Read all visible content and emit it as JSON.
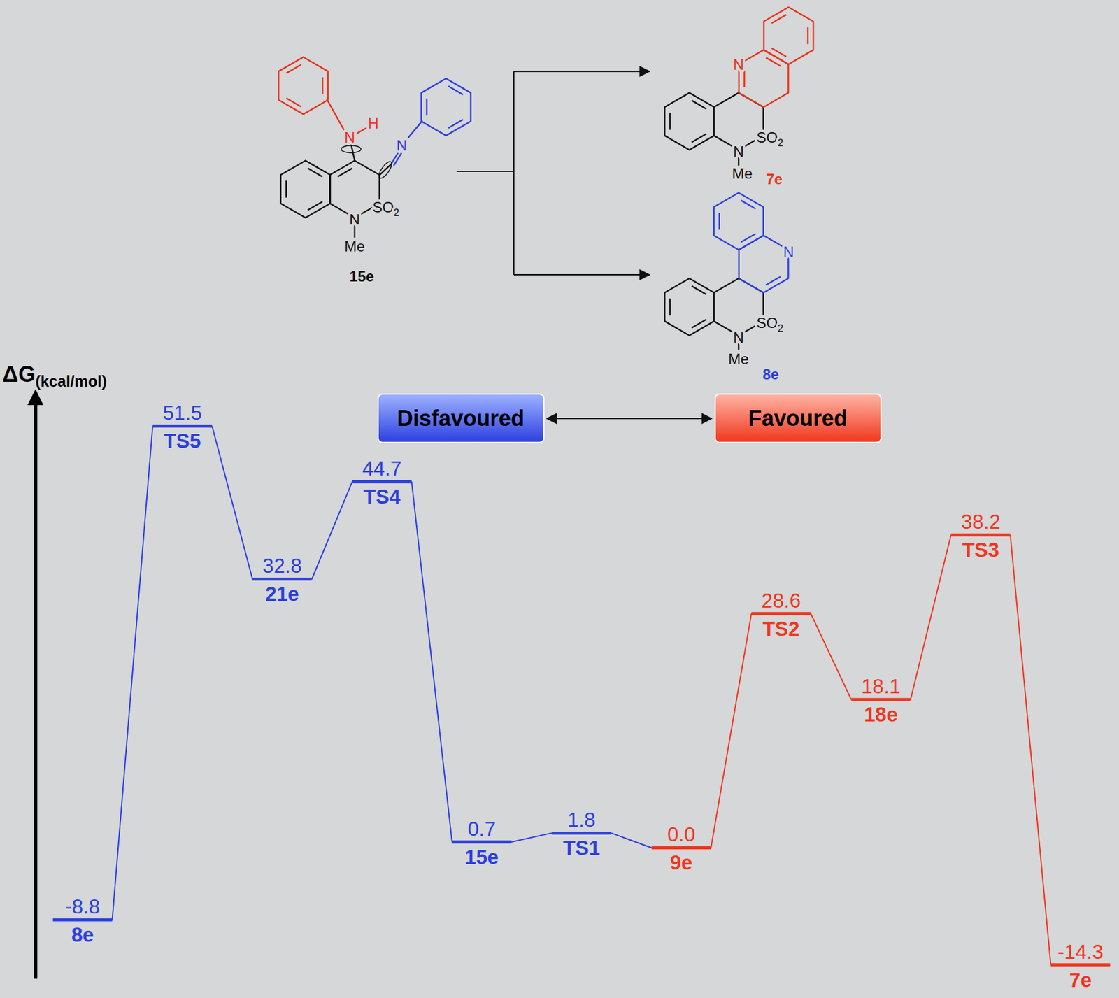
{
  "chart_data": {
    "type": "line",
    "marker": "level",
    "ylabel": "ΔG(kcal/mol)",
    "categories": [
      "8e",
      "TS5",
      "21e",
      "TS4",
      "15e",
      "TS1",
      "9e",
      "TS2",
      "18e",
      "TS3",
      "7e"
    ],
    "ylim": [
      -16,
      56
    ],
    "yticks": [],
    "tick_labels": false,
    "grid": false,
    "data_labels": true,
    "series": [
      {
        "name": "Disfavoured",
        "color": "#2b3fe0",
        "values": [
          -8.8,
          51.5,
          32.8,
          44.7,
          0.7,
          1.8,
          null,
          null,
          null,
          null,
          null
        ]
      },
      {
        "name": "Favoured",
        "color": "#f0361c",
        "values": [
          null,
          null,
          null,
          null,
          null,
          null,
          0.0,
          28.6,
          18.1,
          38.2,
          -14.3
        ],
        "value_labels": [
          null,
          null,
          null,
          null,
          null,
          null,
          "0.0",
          "28.6",
          "18.1",
          "38.2",
          "-14.3"
        ]
      }
    ],
    "structures": [
      {
        "label": "15e",
        "atoms": [
          "N",
          "H",
          "N",
          "N",
          "SO2",
          "Me"
        ]
      },
      {
        "label": "7e",
        "atoms": [
          "N",
          "SO2",
          "N",
          "Me"
        ]
      },
      {
        "label": "8e",
        "atoms": [
          "N",
          "SO2",
          "N",
          "Me"
        ]
      }
    ]
  }
}
